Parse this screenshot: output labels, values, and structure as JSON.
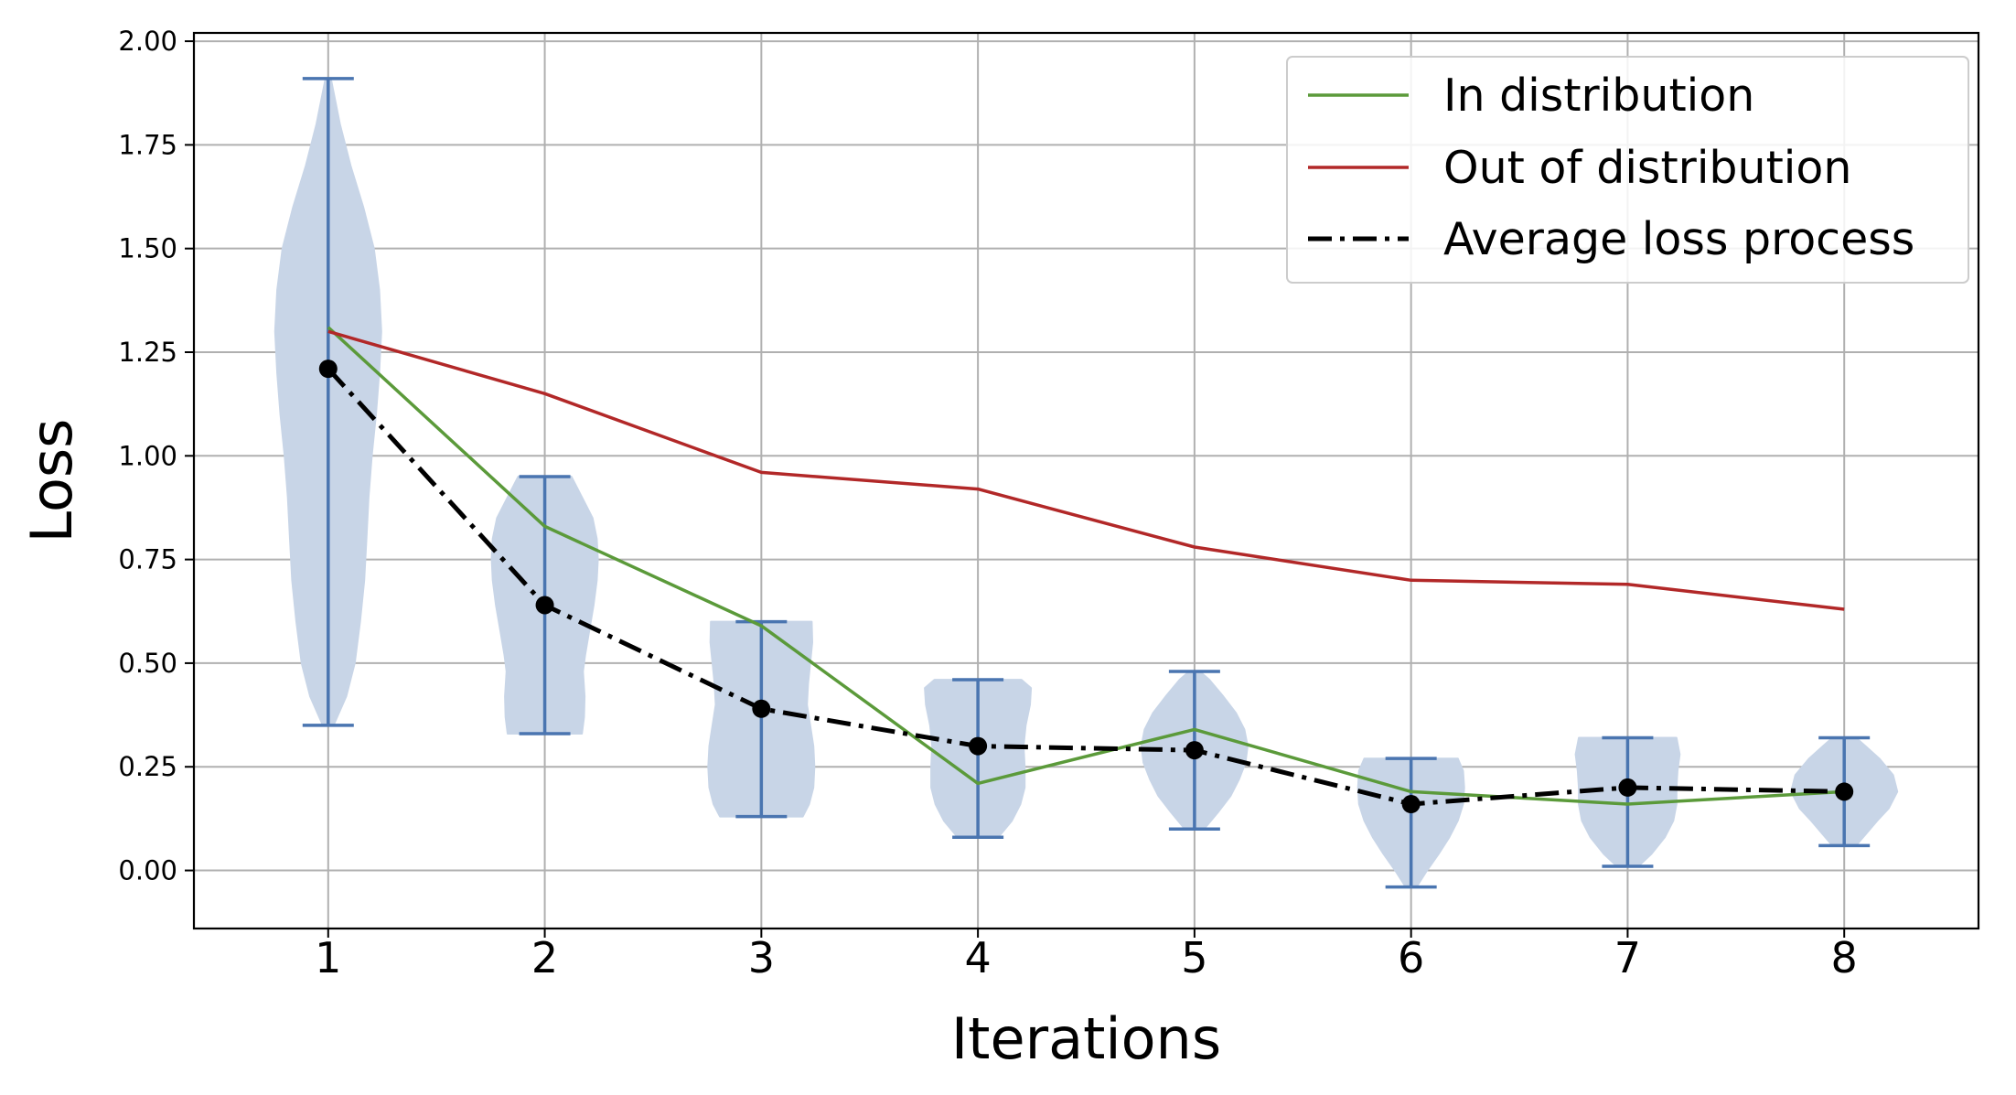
{
  "chart_data": {
    "type": "line",
    "xlabel": "Iterations",
    "ylabel": "Loss",
    "xlim": [
      0.38,
      8.62
    ],
    "ylim": [
      -0.14,
      2.02
    ],
    "x": [
      1,
      2,
      3,
      4,
      5,
      6,
      7,
      8
    ],
    "xticks": [
      "1",
      "2",
      "3",
      "4",
      "5",
      "6",
      "7",
      "8"
    ],
    "yticks": [
      "0.00",
      "0.25",
      "0.50",
      "0.75",
      "1.00",
      "1.25",
      "1.50",
      "1.75",
      "2.00"
    ],
    "grid": true,
    "legend_position": "top-right",
    "series": [
      {
        "name": "In distribution",
        "color": "#5b9a3a",
        "style": "solid",
        "values": [
          1.31,
          0.83,
          0.59,
          0.21,
          0.34,
          0.19,
          0.16,
          0.19
        ]
      },
      {
        "name": "Out of distribution",
        "color": "#b22828",
        "style": "solid",
        "values": [
          1.3,
          1.15,
          0.96,
          0.92,
          0.78,
          0.7,
          0.69,
          0.63
        ]
      },
      {
        "name": "Average loss process",
        "color": "#000000",
        "style": "dashdot",
        "markers": true,
        "values": [
          1.21,
          0.64,
          0.39,
          0.3,
          0.29,
          0.16,
          0.2,
          0.19
        ]
      }
    ],
    "violins": {
      "fill_color": "#c8d5e7",
      "line_color": "#4a75b0",
      "items": [
        {
          "x": 1,
          "min": 0.35,
          "max": 1.91,
          "profile": [
            [
              0.35,
              0.1
            ],
            [
              0.42,
              0.34
            ],
            [
              0.5,
              0.5
            ],
            [
              0.6,
              0.6
            ],
            [
              0.7,
              0.68
            ],
            [
              0.8,
              0.72
            ],
            [
              0.9,
              0.76
            ],
            [
              1.0,
              0.82
            ],
            [
              1.1,
              0.9
            ],
            [
              1.2,
              0.96
            ],
            [
              1.3,
              1.0
            ],
            [
              1.4,
              0.96
            ],
            [
              1.5,
              0.86
            ],
            [
              1.6,
              0.66
            ],
            [
              1.7,
              0.42
            ],
            [
              1.8,
              0.22
            ],
            [
              1.91,
              0.05
            ]
          ]
        },
        {
          "x": 2,
          "min": 0.33,
          "max": 0.95,
          "profile": [
            [
              0.33,
              0.7
            ],
            [
              0.37,
              0.74
            ],
            [
              0.42,
              0.75
            ],
            [
              0.48,
              0.72
            ],
            [
              0.52,
              0.76
            ],
            [
              0.58,
              0.84
            ],
            [
              0.64,
              0.92
            ],
            [
              0.7,
              0.98
            ],
            [
              0.75,
              1.0
            ],
            [
              0.8,
              0.98
            ],
            [
              0.85,
              0.9
            ],
            [
              0.9,
              0.7
            ],
            [
              0.95,
              0.5
            ]
          ]
        },
        {
          "x": 3,
          "min": 0.13,
          "max": 0.6,
          "profile": [
            [
              0.13,
              0.78
            ],
            [
              0.16,
              0.9
            ],
            [
              0.2,
              0.98
            ],
            [
              0.25,
              1.0
            ],
            [
              0.3,
              0.98
            ],
            [
              0.35,
              0.92
            ],
            [
              0.4,
              0.86
            ],
            [
              0.45,
              0.88
            ],
            [
              0.5,
              0.92
            ],
            [
              0.55,
              0.96
            ],
            [
              0.6,
              0.95
            ]
          ]
        },
        {
          "x": 4,
          "min": 0.08,
          "max": 0.46,
          "profile": [
            [
              0.08,
              0.38
            ],
            [
              0.12,
              0.64
            ],
            [
              0.16,
              0.8
            ],
            [
              0.2,
              0.88
            ],
            [
              0.25,
              0.88
            ],
            [
              0.3,
              0.86
            ],
            [
              0.35,
              0.9
            ],
            [
              0.4,
              0.98
            ],
            [
              0.44,
              1.0
            ],
            [
              0.46,
              0.82
            ]
          ]
        },
        {
          "x": 5,
          "min": 0.1,
          "max": 0.48,
          "profile": [
            [
              0.1,
              0.18
            ],
            [
              0.14,
              0.44
            ],
            [
              0.18,
              0.68
            ],
            [
              0.22,
              0.84
            ],
            [
              0.26,
              0.96
            ],
            [
              0.3,
              1.0
            ],
            [
              0.34,
              0.94
            ],
            [
              0.38,
              0.78
            ],
            [
              0.42,
              0.54
            ],
            [
              0.46,
              0.28
            ],
            [
              0.48,
              0.1
            ]
          ]
        },
        {
          "x": 6,
          "min": -0.04,
          "max": 0.27,
          "profile": [
            [
              -0.04,
              0.1
            ],
            [
              0.0,
              0.3
            ],
            [
              0.04,
              0.52
            ],
            [
              0.08,
              0.72
            ],
            [
              0.12,
              0.88
            ],
            [
              0.16,
              0.98
            ],
            [
              0.2,
              1.0
            ],
            [
              0.24,
              0.98
            ],
            [
              0.27,
              0.88
            ]
          ]
        },
        {
          "x": 7,
          "min": 0.01,
          "max": 0.32,
          "profile": [
            [
              0.01,
              0.2
            ],
            [
              0.04,
              0.45
            ],
            [
              0.08,
              0.7
            ],
            [
              0.12,
              0.86
            ],
            [
              0.16,
              0.92
            ],
            [
              0.2,
              0.92
            ],
            [
              0.24,
              0.94
            ],
            [
              0.28,
              0.98
            ],
            [
              0.32,
              0.92
            ]
          ]
        },
        {
          "x": 8,
          "min": 0.06,
          "max": 0.32,
          "profile": [
            [
              0.06,
              0.22
            ],
            [
              0.09,
              0.42
            ],
            [
              0.12,
              0.62
            ],
            [
              0.15,
              0.84
            ],
            [
              0.19,
              1.0
            ],
            [
              0.23,
              0.92
            ],
            [
              0.27,
              0.66
            ],
            [
              0.3,
              0.4
            ],
            [
              0.32,
              0.22
            ]
          ]
        }
      ]
    }
  }
}
